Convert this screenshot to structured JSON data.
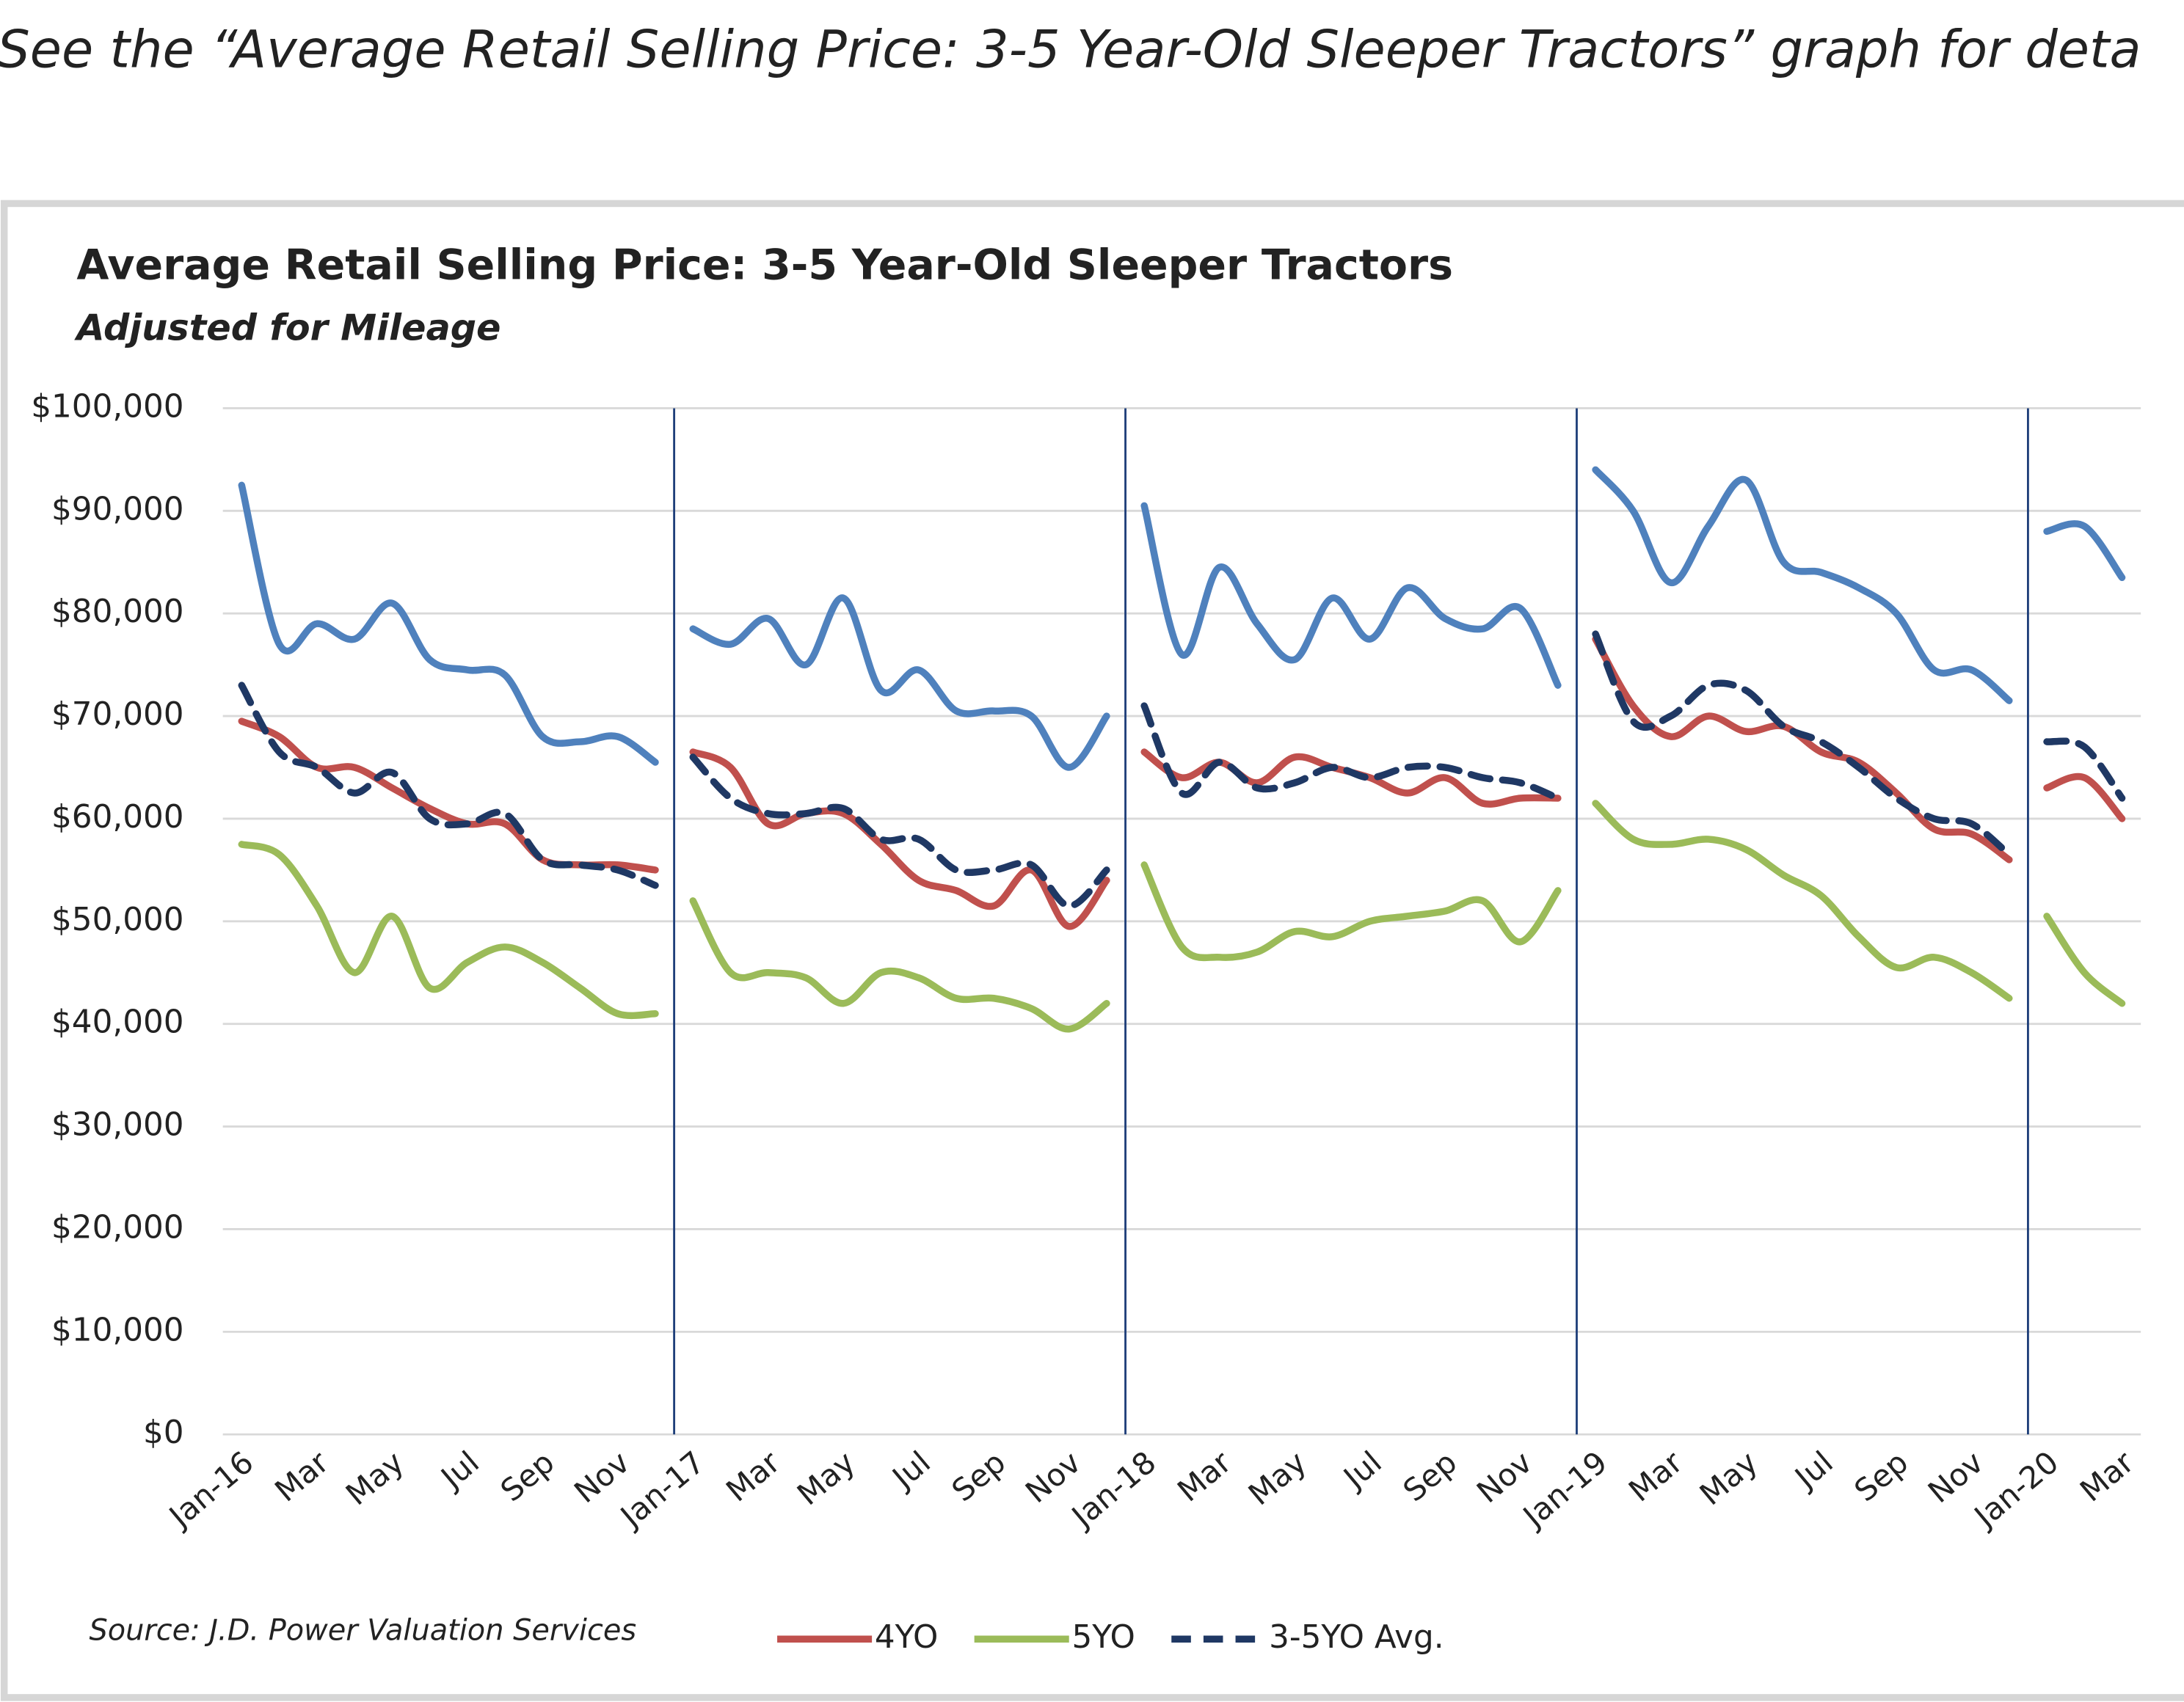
{
  "caption": "See the “Average Retail Selling Price: 3-5 Year-Old Sleeper Tractors” graph for deta",
  "chart_data": {
    "type": "line",
    "title": "Average Retail Selling Price: 3-5 Year-Old Sleeper Tractors",
    "subtitle": "Adjusted for Mileage",
    "source": "Source: J.D. Power Valuation Services",
    "categories": [
      "Jan-16",
      null,
      "Mar",
      null,
      "May",
      null,
      "Jul",
      null,
      "Sep",
      null,
      "Nov",
      null,
      "Jan-17",
      null,
      "Mar",
      null,
      "May",
      null,
      "Jul",
      null,
      "Sep",
      null,
      "Nov",
      null,
      "Jan-18",
      null,
      "Mar",
      null,
      "May",
      null,
      "Jul",
      null,
      "Sep",
      null,
      "Nov",
      null,
      "Jan-19",
      null,
      "Mar",
      null,
      "May",
      null,
      "Jul",
      null,
      "Sep",
      null,
      "Nov",
      null,
      "Jan-20",
      null,
      "Mar"
    ],
    "series": [
      {
        "color": "#4f81bd",
        "dash": false,
        "values": [
          92500,
          77000,
          79000,
          77500,
          81000,
          75500,
          74500,
          74000,
          68000,
          67500,
          68000,
          65500,
          78500,
          77000,
          79500,
          75000,
          81500,
          72500,
          74500,
          70500,
          70500,
          70000,
          65000,
          70000,
          90500,
          76000,
          84500,
          79000,
          75500,
          81500,
          77500,
          82500,
          79500,
          78500,
          80500,
          73000,
          94000,
          90000,
          83000,
          88500,
          93000,
          85000,
          84000,
          82500,
          80000,
          74500,
          74500,
          71500,
          88000,
          88500,
          83500
        ]
      },
      {
        "name": "4YO",
        "color": "#c0504d",
        "dash": false,
        "values": [
          69500,
          68000,
          65000,
          65000,
          63000,
          61000,
          59500,
          59500,
          56000,
          55500,
          55500,
          55000,
          66500,
          65000,
          59500,
          60500,
          60500,
          57500,
          54000,
          53000,
          51500,
          55000,
          49500,
          54000,
          66500,
          64000,
          65500,
          63500,
          66000,
          65000,
          64000,
          62500,
          64000,
          61500,
          62000,
          62000,
          77500,
          71000,
          68000,
          70000,
          68500,
          69000,
          66500,
          65500,
          62500,
          59000,
          58500,
          56000,
          63000,
          64000,
          60000
        ]
      },
      {
        "name": "5YO",
        "color": "#9bbb59",
        "dash": false,
        "values": [
          57500,
          56500,
          51500,
          45000,
          50500,
          43500,
          46000,
          47500,
          46000,
          43500,
          41000,
          41000,
          52000,
          45000,
          45000,
          44500,
          42000,
          45000,
          44500,
          42500,
          42500,
          41500,
          39500,
          42000,
          55500,
          47500,
          46500,
          47000,
          49000,
          48500,
          50000,
          50500,
          51000,
          52000,
          48000,
          53000,
          61500,
          58000,
          57500,
          58000,
          57000,
          54500,
          52500,
          48500,
          45500,
          46500,
          45000,
          42500,
          50500,
          45000,
          42000
        ]
      },
      {
        "name": "3-5YO Avg.",
        "color": "#1f3864",
        "dash": true,
        "values": [
          73000,
          66500,
          65000,
          62500,
          64500,
          60000,
          59500,
          60500,
          56000,
          55500,
          55000,
          53500,
          66000,
          62000,
          60500,
          60500,
          61000,
          58000,
          58000,
          55000,
          55000,
          55500,
          51500,
          55000,
          71000,
          62500,
          65500,
          63000,
          63500,
          65000,
          64000,
          65000,
          65000,
          64000,
          63500,
          62000,
          78000,
          69500,
          70000,
          73000,
          72500,
          69000,
          67500,
          65000,
          62000,
          60000,
          59500,
          56500,
          67500,
          67000,
          62000
        ]
      }
    ],
    "ylim": [
      0,
      100000
    ],
    "yticks": [
      {
        "value": 0,
        "label": "$0"
      },
      {
        "value": 10000,
        "label": "$10,000"
      },
      {
        "value": 20000,
        "label": "$20,000"
      },
      {
        "value": 30000,
        "label": "$30,000"
      },
      {
        "value": 40000,
        "label": "$40,000"
      },
      {
        "value": 50000,
        "label": "$50,000"
      },
      {
        "value": 60000,
        "label": "$60,000"
      },
      {
        "value": 70000,
        "label": "$70,000"
      },
      {
        "value": 80000,
        "label": "$80,000"
      },
      {
        "value": 90000,
        "label": "$90,000"
      },
      {
        "value": 100000,
        "label": "$100,000"
      }
    ],
    "grid": true,
    "legend": "bottom"
  }
}
